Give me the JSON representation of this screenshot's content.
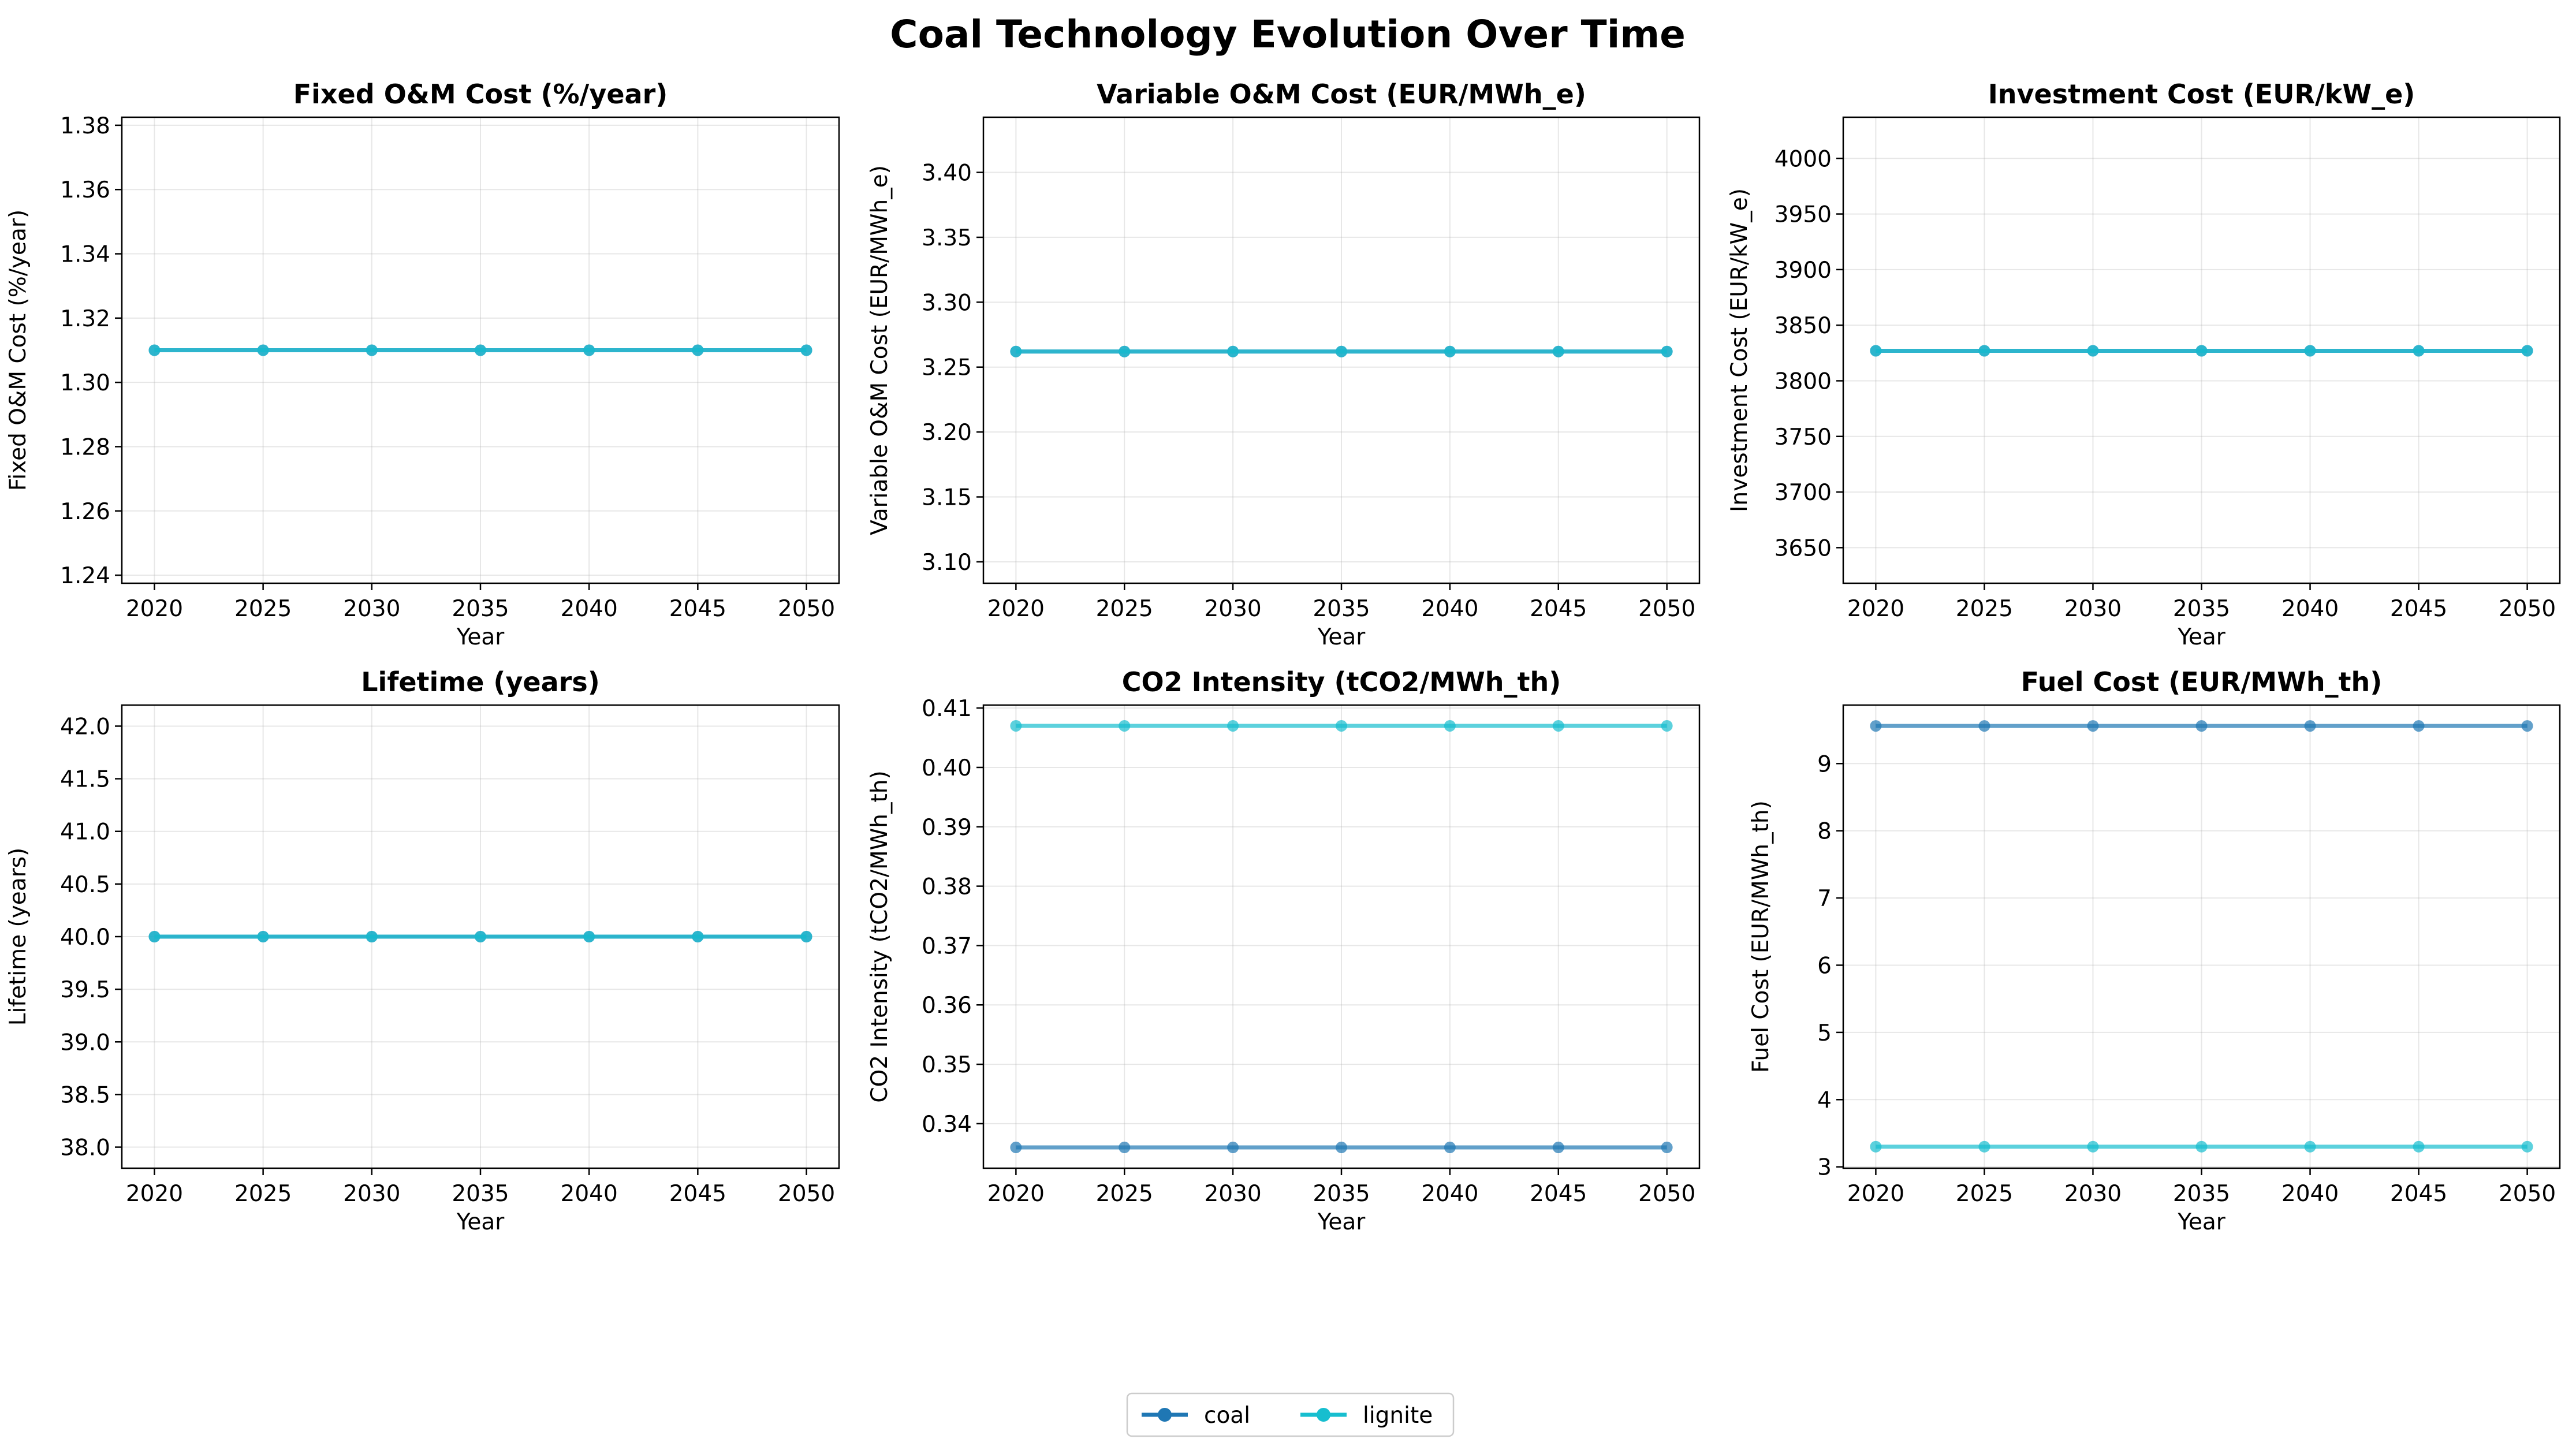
{
  "figure": {
    "title": "Coal Technology Evolution Over Time",
    "legend": {
      "placement": "bottom-center",
      "entries": [
        {
          "name": "coal",
          "color": "#1f77b4"
        },
        {
          "name": "lignite",
          "color": "#17becf"
        }
      ]
    }
  },
  "chart_data": [
    {
      "type": "line",
      "title": "Fixed O&M Cost (%/year)",
      "xlabel": "Year",
      "ylabel": "Fixed O&M Cost (%/year)",
      "x": [
        2020,
        2025,
        2030,
        2035,
        2040,
        2045,
        2050
      ],
      "xlim": [
        2018.5,
        2051.5
      ],
      "ylim": [
        1.2375,
        1.3825
      ],
      "yticks": [
        1.24,
        1.26,
        1.28,
        1.3,
        1.32,
        1.34,
        1.36,
        1.38
      ],
      "ytick_decimals": 2,
      "grid": true,
      "series": [
        {
          "name": "coal",
          "color": "#1f77b4",
          "values": [
            1.31,
            1.31,
            1.31,
            1.31,
            1.31,
            1.31,
            1.31
          ]
        },
        {
          "name": "lignite",
          "color": "#17becf",
          "values": [
            1.31,
            1.31,
            1.31,
            1.31,
            1.31,
            1.31,
            1.31
          ]
        }
      ]
    },
    {
      "type": "line",
      "title": "Variable O&M Cost (EUR/MWh_e)",
      "xlabel": "Year",
      "ylabel": "Variable O&M Cost (EUR/MWh_e)",
      "x": [
        2020,
        2025,
        2030,
        2035,
        2040,
        2045,
        2050
      ],
      "xlim": [
        2018.5,
        2051.5
      ],
      "ylim": [
        3.0835,
        3.4425
      ],
      "yticks": [
        3.1,
        3.15,
        3.2,
        3.25,
        3.3,
        3.35,
        3.4
      ],
      "ytick_decimals": 2,
      "grid": true,
      "series": [
        {
          "name": "coal",
          "color": "#1f77b4",
          "values": [
            3.262,
            3.262,
            3.262,
            3.262,
            3.262,
            3.262,
            3.262
          ]
        },
        {
          "name": "lignite",
          "color": "#17becf",
          "values": [
            3.262,
            3.262,
            3.262,
            3.262,
            3.262,
            3.262,
            3.262
          ]
        }
      ]
    },
    {
      "type": "line",
      "title": "Investment Cost (EUR/kW_e)",
      "xlabel": "Year",
      "ylabel": "Investment Cost (EUR/kW_e)",
      "x": [
        2020,
        2025,
        2030,
        2035,
        2040,
        2045,
        2050
      ],
      "xlim": [
        2018.5,
        2051.5
      ],
      "ylim": [
        3618,
        4037
      ],
      "yticks": [
        3650,
        3700,
        3750,
        3800,
        3850,
        3900,
        3950,
        4000
      ],
      "ytick_decimals": 0,
      "grid": true,
      "series": [
        {
          "name": "coal",
          "color": "#1f77b4",
          "values": [
            3827,
            3827,
            3827,
            3827,
            3827,
            3827,
            3827
          ]
        },
        {
          "name": "lignite",
          "color": "#17becf",
          "values": [
            3827,
            3827,
            3827,
            3827,
            3827,
            3827,
            3827
          ]
        }
      ]
    },
    {
      "type": "line",
      "title": "Lifetime (years)",
      "xlabel": "Year",
      "ylabel": "Lifetime (years)",
      "x": [
        2020,
        2025,
        2030,
        2035,
        2040,
        2045,
        2050
      ],
      "xlim": [
        2018.5,
        2051.5
      ],
      "ylim": [
        37.8,
        42.2
      ],
      "yticks": [
        38.0,
        38.5,
        39.0,
        39.5,
        40.0,
        40.5,
        41.0,
        41.5,
        42.0
      ],
      "ytick_decimals": 1,
      "grid": true,
      "series": [
        {
          "name": "coal",
          "color": "#1f77b4",
          "values": [
            40,
            40,
            40,
            40,
            40,
            40,
            40
          ]
        },
        {
          "name": "lignite",
          "color": "#17becf",
          "values": [
            40,
            40,
            40,
            40,
            40,
            40,
            40
          ]
        }
      ]
    },
    {
      "type": "line",
      "title": "CO2 Intensity (tCO2/MWh_th)",
      "xlabel": "Year",
      "ylabel": "CO2 Intensity (tCO2/MWh_th)",
      "x": [
        2020,
        2025,
        2030,
        2035,
        2040,
        2045,
        2050
      ],
      "xlim": [
        2018.5,
        2051.5
      ],
      "ylim": [
        0.3325,
        0.4105
      ],
      "yticks": [
        0.34,
        0.35,
        0.36,
        0.37,
        0.38,
        0.39,
        0.4,
        0.41
      ],
      "ytick_decimals": 2,
      "grid": true,
      "series": [
        {
          "name": "coal",
          "color": "#1f77b4",
          "values": [
            0.336,
            0.336,
            0.336,
            0.336,
            0.336,
            0.336,
            0.336
          ]
        },
        {
          "name": "lignite",
          "color": "#17becf",
          "values": [
            0.407,
            0.407,
            0.407,
            0.407,
            0.407,
            0.407,
            0.407
          ]
        }
      ]
    },
    {
      "type": "line",
      "title": "Fuel Cost (EUR/MWh_th)",
      "xlabel": "Year",
      "ylabel": "Fuel Cost (EUR/MWh_th)",
      "x": [
        2020,
        2025,
        2030,
        2035,
        2040,
        2045,
        2050
      ],
      "xlim": [
        2018.5,
        2051.5
      ],
      "ylim": [
        2.98,
        9.87
      ],
      "yticks": [
        3,
        4,
        5,
        6,
        7,
        8,
        9
      ],
      "ytick_decimals": 0,
      "grid": true,
      "series": [
        {
          "name": "coal",
          "color": "#1f77b4",
          "values": [
            9.56,
            9.56,
            9.56,
            9.56,
            9.56,
            9.56,
            9.56
          ]
        },
        {
          "name": "lignite",
          "color": "#17becf",
          "values": [
            3.3,
            3.3,
            3.3,
            3.3,
            3.3,
            3.3,
            3.3
          ]
        }
      ]
    }
  ]
}
